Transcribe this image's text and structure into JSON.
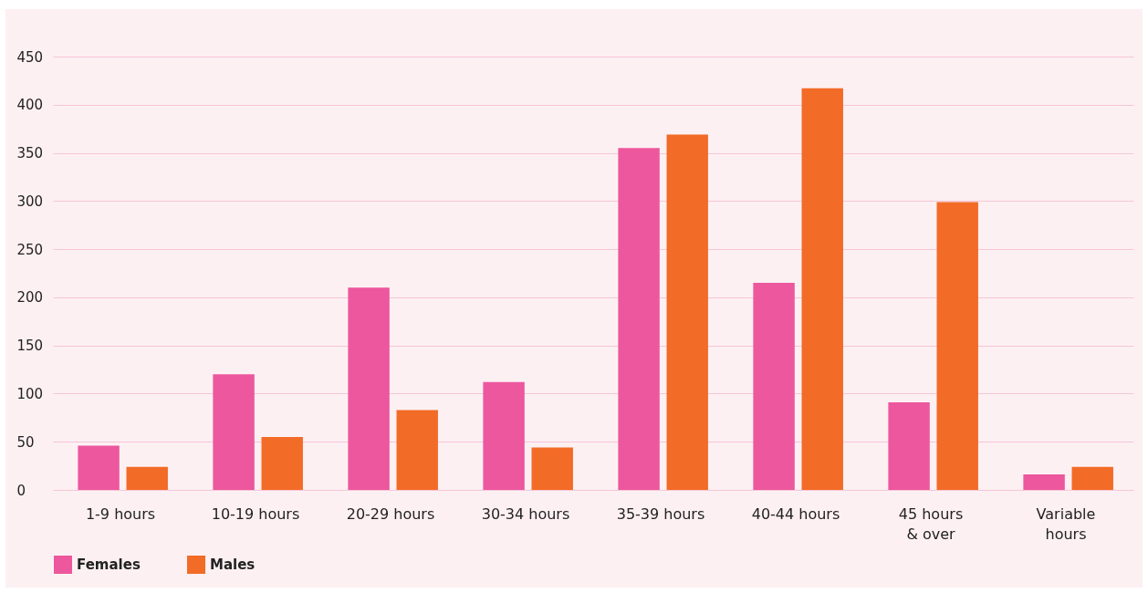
{
  "chart_data": {
    "type": "bar",
    "categories": [
      "1-9 hours",
      "10-19 hours",
      "20-29 hours",
      "30-34 hours",
      "35-39 hours",
      "40-44 hours",
      "45 hours & over",
      "Variable hours"
    ],
    "series": [
      {
        "name": "Females",
        "color": "#ec579d",
        "values": [
          46,
          120,
          210,
          112,
          355,
          215,
          91,
          16
        ]
      },
      {
        "name": "Males",
        "color": "#f26b27",
        "values": [
          24,
          55,
          83,
          44,
          369,
          417,
          299,
          24
        ]
      }
    ],
    "ylim": [
      0,
      450
    ],
    "yticks": [
      0,
      50,
      100,
      150,
      200,
      250,
      300,
      350,
      400,
      450
    ],
    "grid": "y",
    "legend": "bottom"
  }
}
